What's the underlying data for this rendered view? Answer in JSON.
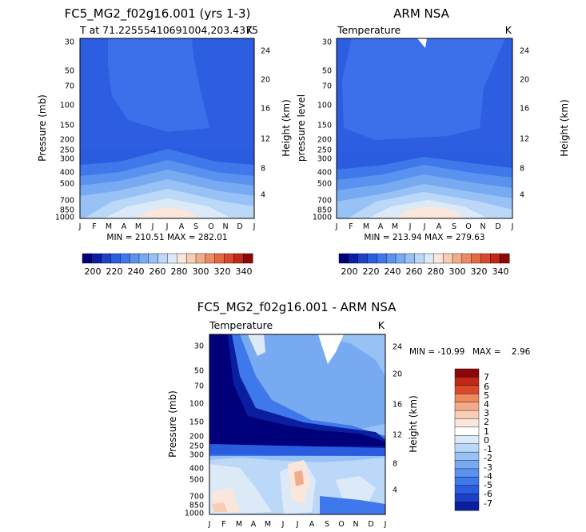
{
  "colors": {
    "map": [
      "#00007a",
      "#0a1fa0",
      "#1c40c8",
      "#2a5ce0",
      "#3f78ea",
      "#5a92f0",
      "#78aaf2",
      "#98c2f6",
      "#bcd8f8",
      "#dceaf8",
      "#fbe6dc",
      "#f8cdb6",
      "#f4ac88",
      "#ee8a60",
      "#e66a40",
      "#d8482a",
      "#c02818",
      "#8c0808"
    ]
  },
  "chart_data": [
    {
      "id": "model",
      "type": "heatmap",
      "title": "FC5_MG2_f02g16.001 (yrs 1-3)",
      "subtitle_left": "T at 71.22555410691004,203.4375",
      "subtitle_right": "K",
      "xlabel": "",
      "ylabel": "Pressure (mb)",
      "ylabel2": "Height (km)",
      "x_ticks": [
        "J",
        "F",
        "M",
        "A",
        "M",
        "J",
        "J",
        "A",
        "S",
        "O",
        "N",
        "D",
        "J"
      ],
      "y_ticks": [
        "30",
        "50",
        "70",
        "100",
        "150",
        "200",
        "250",
        "300",
        "400",
        "500",
        "700",
        "850",
        "1000"
      ],
      "y2_ticks": [
        "24",
        "20",
        "16",
        "12",
        "8",
        "4"
      ],
      "stats": "MIN = 210.51  MAX = 282.01",
      "min": 210.51,
      "max": 282.01
    },
    {
      "id": "obs",
      "type": "heatmap",
      "title": "ARM NSA",
      "subtitle_left": "Temperature",
      "subtitle_right": "K",
      "xlabel": "",
      "ylabel": "pressure level",
      "ylabel2": "Height (km)",
      "x_ticks": [
        "J",
        "F",
        "M",
        "A",
        "M",
        "J",
        "J",
        "A",
        "S",
        "O",
        "N",
        "D",
        "J"
      ],
      "y_ticks": [
        "30",
        "50",
        "70",
        "100",
        "150",
        "200",
        "250",
        "300",
        "400",
        "500",
        "700",
        "850",
        "1000"
      ],
      "y2_ticks": [
        "24",
        "20",
        "16",
        "12",
        "8",
        "4"
      ],
      "stats": "MIN = 213.94  MAX = 279.63",
      "min": 213.94,
      "max": 279.63
    },
    {
      "id": "diff",
      "type": "heatmap",
      "title": "FC5_MG2_f02g16.001 - ARM NSA",
      "subtitle_left": "Temperature",
      "subtitle_right": "K",
      "xlabel": "",
      "ylabel": "Pressure (mb)",
      "ylabel2": "Height (km)",
      "x_ticks": [
        "J",
        "F",
        "M",
        "A",
        "M",
        "J",
        "J",
        "A",
        "S",
        "O",
        "N",
        "D",
        "J"
      ],
      "y_ticks": [
        "30",
        "50",
        "70",
        "100",
        "150",
        "200",
        "250",
        "300",
        "400",
        "500",
        "700",
        "850",
        "1000"
      ],
      "y2_ticks": [
        "24",
        "20",
        "16",
        "12",
        "8",
        "4"
      ],
      "stats_min": "MIN = -10.99",
      "stats_max": "MAX =    2.96",
      "min": -10.99,
      "max": 2.96
    }
  ],
  "colorbar_abs": {
    "labels": [
      "200",
      "220",
      "240",
      "260",
      "280",
      "300",
      "320",
      "340"
    ],
    "levels": [
      195,
      200,
      205,
      210,
      215,
      220,
      225,
      230,
      235,
      240,
      245,
      250,
      255,
      260,
      265,
      270,
      275,
      280,
      285,
      290,
      295,
      300,
      305,
      310,
      315,
      320,
      325,
      330,
      335,
      340,
      345
    ]
  },
  "colorbar_diff": {
    "labels": [
      "7",
      "6",
      "5",
      "4",
      "3",
      "2",
      "1",
      "0",
      "-1",
      "-2",
      "-3",
      "-4",
      "-5",
      "-6",
      "-7"
    ]
  }
}
